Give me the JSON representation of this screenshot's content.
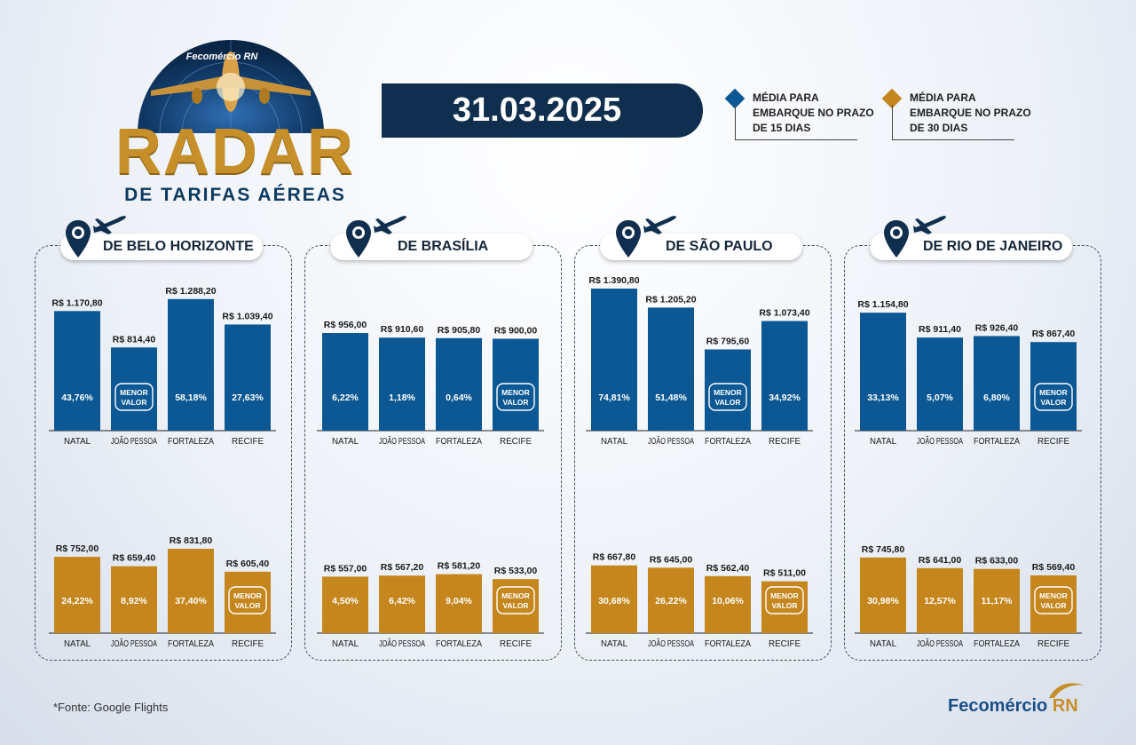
{
  "header": {
    "brand": "Fecomércio RN",
    "title": "RADAR",
    "subtitle": "DE TARIFAS AÉREAS",
    "date": "31.03.2025"
  },
  "legend": [
    {
      "label": "MÉDIA PARA EMBARQUE NO PRAZO DE 15 DIAS",
      "color": "#0b5894"
    },
    {
      "label": "MÉDIA PARA EMBARQUE NO PRAZO DE 30 DIAS",
      "color": "#c5861d"
    }
  ],
  "colors": {
    "blue": "#0b5894",
    "gold": "#c5861d",
    "navy": "#102f4e"
  },
  "menor_valor": "MENOR VALOR",
  "panels": [
    {
      "title": "DE BELO HORIZONTE"
    },
    {
      "title": "DE BRASÍLIA"
    },
    {
      "title": "DE SÃO PAULO"
    },
    {
      "title": "DE RIO DE JANEIRO"
    }
  ],
  "chart_data": [
    {
      "type": "bar",
      "origin": "DE BELO HORIZONTE",
      "period": "15 dias",
      "categories": [
        "NATAL",
        "JOÃO PESSOA",
        "FORTALEZA",
        "RECIFE"
      ],
      "values": [
        1170.8,
        814.4,
        1288.2,
        1039.4
      ],
      "labels": [
        "R$ 1.170,80",
        "R$ 814,40",
        "R$ 1.288,20",
        "R$ 1.039,40"
      ],
      "pct": [
        "43,76%",
        "MENOR VALOR",
        "58,18%",
        "27,63%"
      ]
    },
    {
      "type": "bar",
      "origin": "DE BRASÍLIA",
      "period": "15 dias",
      "categories": [
        "NATAL",
        "JOÃO PESSOA",
        "FORTALEZA",
        "RECIFE"
      ],
      "values": [
        956.0,
        910.6,
        905.8,
        900.0
      ],
      "labels": [
        "R$ 956,00",
        "R$ 910,60",
        "R$ 905,80",
        "R$ 900,00"
      ],
      "pct": [
        "6,22%",
        "1,18%",
        "0,64%",
        "MENOR VALOR"
      ]
    },
    {
      "type": "bar",
      "origin": "DE SÃO PAULO",
      "period": "15 dias",
      "categories": [
        "NATAL",
        "JOÃO PESSOA",
        "FORTALEZA",
        "RECIFE"
      ],
      "values": [
        1390.8,
        1205.2,
        795.6,
        1073.4
      ],
      "labels": [
        "R$ 1.390,80",
        "R$ 1.205,20",
        "R$ 795,60",
        "R$ 1.073,40"
      ],
      "pct": [
        "74,81%",
        "51,48%",
        "MENOR VALOR",
        "34,92%"
      ]
    },
    {
      "type": "bar",
      "origin": "DE RIO DE JANEIRO",
      "period": "15 dias",
      "categories": [
        "NATAL",
        "JOÃO PESSOA",
        "FORTALEZA",
        "RECIFE"
      ],
      "values": [
        1154.8,
        911.4,
        926.4,
        867.4
      ],
      "labels": [
        "R$ 1.154,80",
        "R$ 911,40",
        "R$ 926,40",
        "R$ 867,40"
      ],
      "pct": [
        "33,13%",
        "5,07%",
        "6,80%",
        "MENOR VALOR"
      ]
    },
    {
      "type": "bar",
      "origin": "DE BELO HORIZONTE",
      "period": "30 dias",
      "categories": [
        "NATAL",
        "JOÃO PESSOA",
        "FORTALEZA",
        "RECIFE"
      ],
      "values": [
        752.0,
        659.4,
        831.8,
        605.4
      ],
      "labels": [
        "R$ 752,00",
        "R$ 659,40",
        "R$ 831,80",
        "R$ 605,40"
      ],
      "pct": [
        "24,22%",
        "8,92%",
        "37,40%",
        "MENOR VALOR"
      ]
    },
    {
      "type": "bar",
      "origin": "DE BRASÍLIA",
      "period": "30 dias",
      "categories": [
        "NATAL",
        "JOÃO PESSOA",
        "FORTALEZA",
        "RECIFE"
      ],
      "values": [
        557.0,
        567.2,
        581.2,
        533.0
      ],
      "labels": [
        "R$ 557,00",
        "R$ 567,20",
        "R$ 581,20",
        "R$ 533,00"
      ],
      "pct": [
        "4,50%",
        "6,42%",
        "9,04%",
        "MENOR VALOR"
      ]
    },
    {
      "type": "bar",
      "origin": "DE SÃO PAULO",
      "period": "30 dias",
      "categories": [
        "NATAL",
        "JOÃO PESSOA",
        "FORTALEZA",
        "RECIFE"
      ],
      "values": [
        667.8,
        645.0,
        562.4,
        511.0
      ],
      "labels": [
        "R$ 667,80",
        "R$ 645,00",
        "R$ 562,40",
        "R$ 511,00"
      ],
      "pct": [
        "30,68%",
        "26,22%",
        "10,06%",
        "MENOR VALOR"
      ]
    },
    {
      "type": "bar",
      "origin": "DE RIO DE JANEIRO",
      "period": "30 dias",
      "categories": [
        "NATAL",
        "JOÃO PESSOA",
        "FORTALEZA",
        "RECIFE"
      ],
      "values": [
        745.8,
        641.0,
        633.0,
        569.4
      ],
      "labels": [
        "R$ 745,80",
        "R$ 641,00",
        "R$ 633,00",
        "R$ 569,40"
      ],
      "pct": [
        "30,98%",
        "12,57%",
        "11,17%",
        "MENOR VALOR"
      ]
    }
  ],
  "footer": {
    "source": "*Fonte: Google Flights",
    "brand_main": "Fecomércio",
    "brand_rn": "RN"
  }
}
